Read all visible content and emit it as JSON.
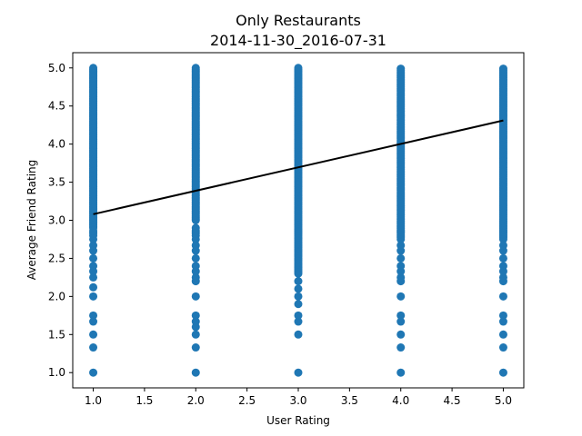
{
  "chart_data": {
    "type": "scatter",
    "title": "Only Restaurants",
    "subtitle": "2014-11-30_2016-07-31",
    "xlabel": "User Rating",
    "ylabel": "Average Friend Rating",
    "xlim": [
      0.8,
      5.2
    ],
    "ylim": [
      0.8,
      5.2
    ],
    "x_ticks": [
      1.0,
      1.5,
      2.0,
      2.5,
      3.0,
      3.5,
      4.0,
      4.5,
      5.0
    ],
    "x_tick_labels": [
      "1.0",
      "1.5",
      "2.0",
      "2.5",
      "3.0",
      "3.5",
      "4.0",
      "4.5",
      "5.0"
    ],
    "y_ticks": [
      1.0,
      1.5,
      2.0,
      2.5,
      3.0,
      3.5,
      4.0,
      4.5,
      5.0
    ],
    "y_tick_labels": [
      "1.0",
      "1.5",
      "2.0",
      "2.5",
      "3.0",
      "3.5",
      "4.0",
      "4.5",
      "5.0"
    ],
    "grid": false,
    "point_color": "#1f77b4",
    "line_color": "#000000",
    "series": [
      {
        "x_value": 1.0,
        "dense_ranges": [
          [
            2.9,
            5.0
          ]
        ],
        "sparse_y": [
          1.0,
          1.33,
          1.5,
          1.67,
          1.75,
          2.0,
          2.12,
          2.25,
          2.33,
          2.4,
          2.5,
          2.6,
          2.67,
          2.75,
          2.8,
          2.83,
          2.86
        ]
      },
      {
        "x_value": 2.0,
        "dense_ranges": [
          [
            3.0,
            5.0
          ]
        ],
        "sparse_y": [
          1.0,
          1.33,
          1.5,
          1.6,
          1.67,
          1.75,
          2.0,
          2.2,
          2.25,
          2.33,
          2.4,
          2.5,
          2.6,
          2.67,
          2.75,
          2.8,
          2.83,
          2.86,
          2.9
        ]
      },
      {
        "x_value": 3.0,
        "dense_ranges": [
          [
            2.3,
            5.0
          ]
        ],
        "sparse_y": [
          1.0,
          1.5,
          1.67,
          1.75,
          1.9,
          2.0,
          2.1,
          2.2
        ]
      },
      {
        "x_value": 4.0,
        "dense_ranges": [
          [
            2.75,
            5.0
          ]
        ],
        "sparse_y": [
          1.0,
          1.33,
          1.5,
          1.67,
          1.75,
          2.0,
          2.2,
          2.25,
          2.33,
          2.4,
          2.5,
          2.6,
          2.67
        ]
      },
      {
        "x_value": 5.0,
        "dense_ranges": [
          [
            2.75,
            5.0
          ]
        ],
        "sparse_y": [
          1.0,
          1.33,
          1.5,
          1.67,
          1.75,
          2.0,
          2.2,
          2.25,
          2.33,
          2.4,
          2.5,
          2.6,
          2.67
        ]
      }
    ],
    "trend_line": {
      "x": [
        1.0,
        5.0
      ],
      "y": [
        3.08,
        4.31
      ]
    }
  }
}
